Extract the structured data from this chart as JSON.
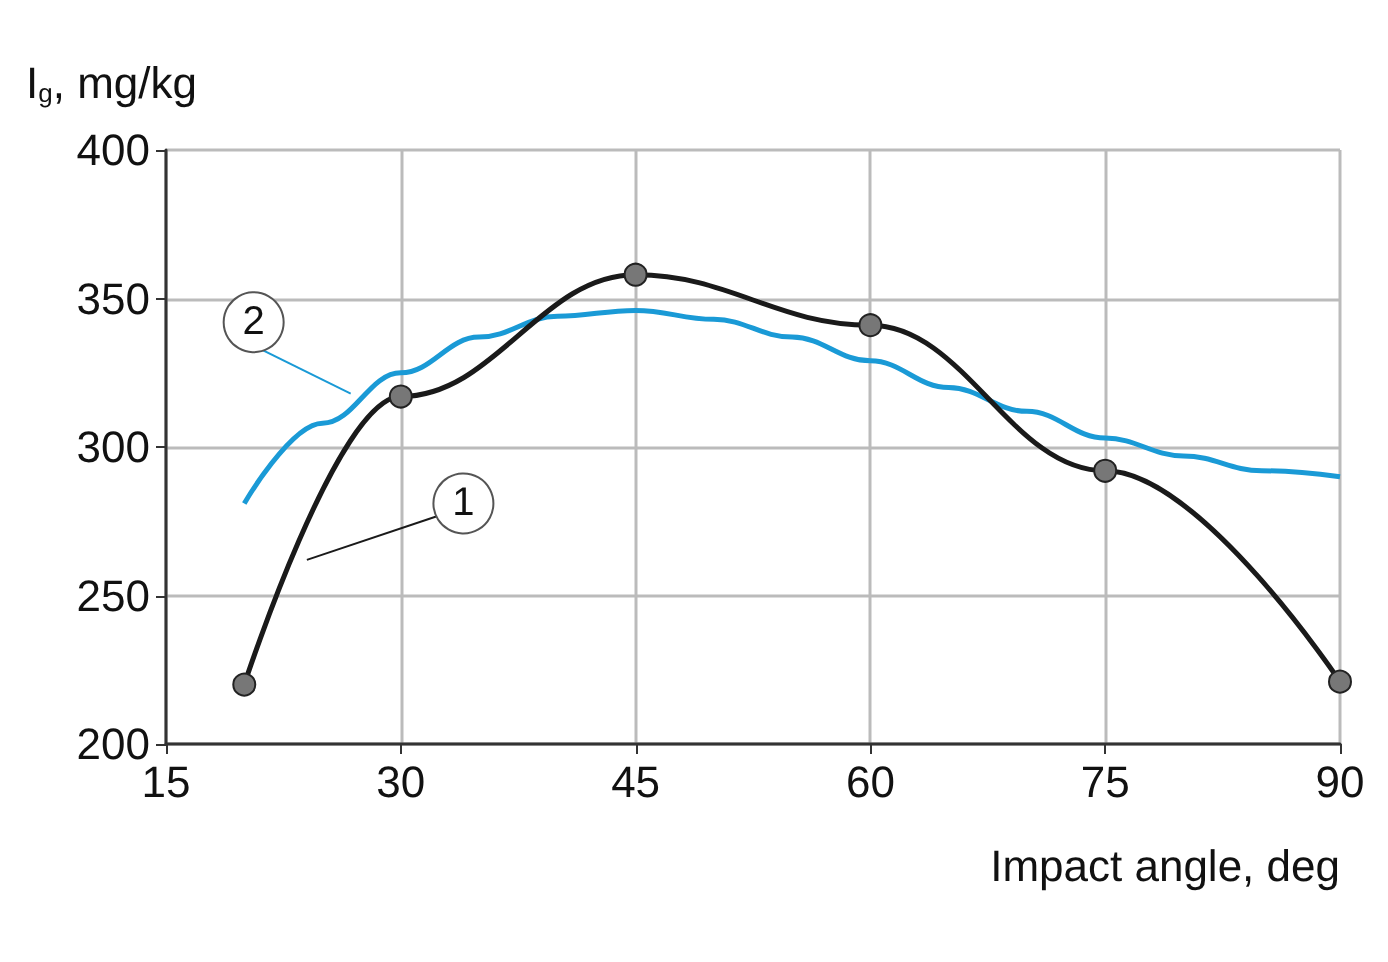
{
  "chart_data": {
    "type": "line",
    "xlabel": "Impact angle, deg",
    "ylabel": "I$_{g}$, mg/kg",
    "xlim": [
      15,
      90
    ],
    "xticks": [
      15,
      30,
      45,
      60,
      75,
      90
    ],
    "ylim": [
      200,
      400
    ],
    "yticks": [
      200,
      250,
      300,
      350,
      400
    ],
    "grid": true,
    "legend": false,
    "series": [
      {
        "name": "1",
        "color": "#1a1a1a",
        "marker": "circle",
        "x": [
          20,
          30,
          45,
          60,
          75,
          90
        ],
        "values": [
          220,
          317,
          358,
          341,
          292,
          221
        ]
      },
      {
        "name": "2",
        "color": "#1a9ad6",
        "marker": "none",
        "x": [
          20,
          25,
          30,
          35,
          40,
          45,
          50,
          55,
          60,
          65,
          70,
          75,
          80,
          85,
          90
        ],
        "values": [
          281,
          308,
          325,
          337,
          344,
          346,
          343,
          337,
          329,
          320,
          312,
          303,
          297,
          292,
          290
        ]
      }
    ]
  }
}
